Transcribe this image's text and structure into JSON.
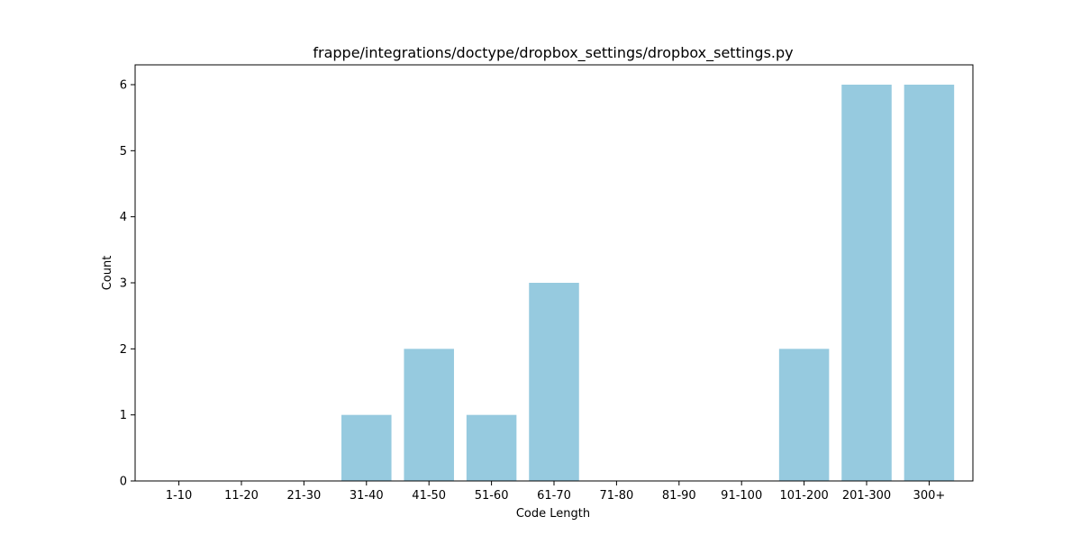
{
  "chart_data": {
    "type": "bar",
    "title": "frappe/integrations/doctype/dropbox_settings/dropbox_settings.py",
    "xlabel": "Code Length",
    "ylabel": "Count",
    "categories": [
      "1-10",
      "11-20",
      "21-30",
      "31-40",
      "41-50",
      "51-60",
      "61-70",
      "71-80",
      "81-90",
      "91-100",
      "101-200",
      "201-300",
      "300+"
    ],
    "values": [
      0,
      0,
      0,
      1,
      2,
      1,
      3,
      0,
      0,
      0,
      2,
      6,
      6
    ],
    "ylim": [
      0,
      6.3
    ],
    "yticks": [
      0,
      1,
      2,
      3,
      4,
      5,
      6
    ],
    "grid": false,
    "legend": "none",
    "bar_color": "#96cadf"
  }
}
